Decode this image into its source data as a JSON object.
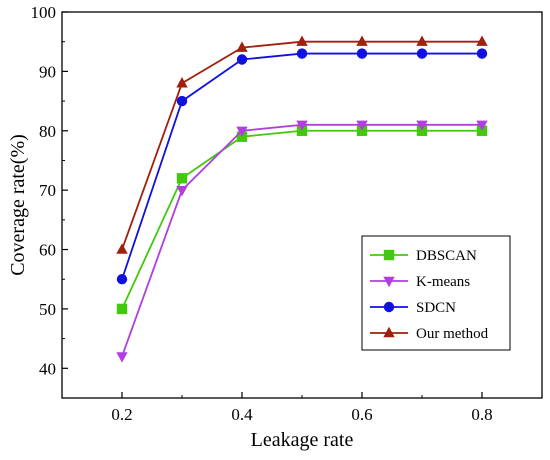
{
  "chart_data": {
    "type": "line",
    "title": "",
    "xlabel": "Leakage rate",
    "ylabel": "Coverage rate(%)",
    "xlim": [
      0.1,
      0.9
    ],
    "ylim": [
      35,
      100
    ],
    "xticks": [
      "0.2",
      "0.4",
      "0.6",
      "0.8"
    ],
    "yticks": [
      "40",
      "50",
      "60",
      "70",
      "80",
      "90",
      "100"
    ],
    "x": [
      0.2,
      0.3,
      0.4,
      0.5,
      0.6,
      0.7,
      0.8
    ],
    "grid": false,
    "legend_position": "bottom-right",
    "series": [
      {
        "name": "DBSCAN",
        "color": "#43c90c",
        "marker": "square",
        "values": [
          50,
          72,
          79,
          80,
          80,
          80,
          80
        ]
      },
      {
        "name": "K-means",
        "color": "#b03ee0",
        "marker": "triangle-down",
        "values": [
          42,
          70,
          80,
          81,
          81,
          81,
          81
        ]
      },
      {
        "name": "SDCN",
        "color": "#1010e0",
        "marker": "circle",
        "values": [
          55,
          85,
          92,
          93,
          93,
          93,
          93
        ]
      },
      {
        "name": "Our method",
        "color": "#a0200c",
        "marker": "triangle-up",
        "values": [
          60,
          88,
          94,
          95,
          95,
          95,
          95
        ]
      }
    ]
  }
}
